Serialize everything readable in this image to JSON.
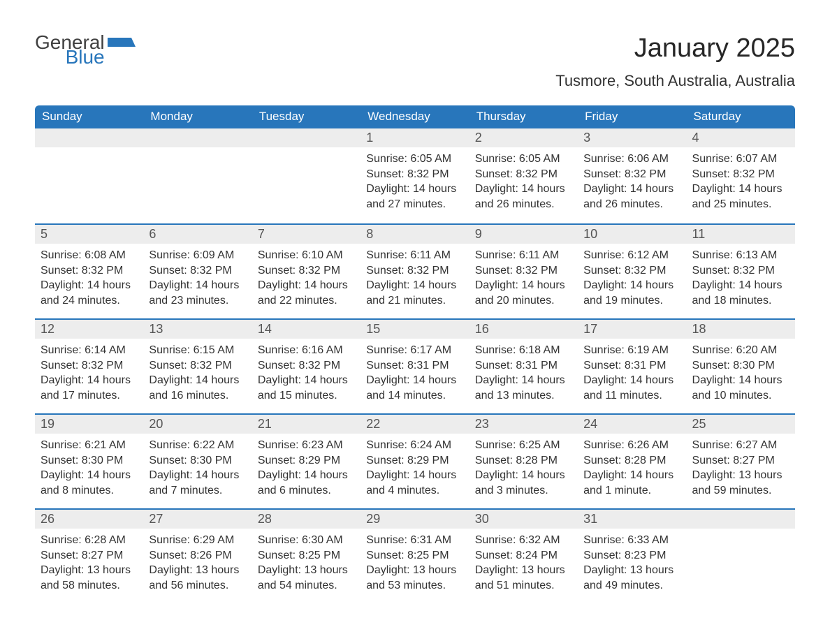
{
  "logo": {
    "general": "General",
    "blue": "Blue",
    "shape_color": "#2876bb"
  },
  "title": "January 2025",
  "location": "Tusmore, South Australia, Australia",
  "header_bg": "#2876bb",
  "header_fg": "#ffffff",
  "daynum_bg": "#ededed",
  "border_color": "#2876bb",
  "body_fontsize": 16,
  "weekdays": [
    "Sunday",
    "Monday",
    "Tuesday",
    "Wednesday",
    "Thursday",
    "Friday",
    "Saturday"
  ],
  "weeks": [
    [
      {
        "day": "",
        "sunrise": "",
        "sunset": "",
        "daylight": ""
      },
      {
        "day": "",
        "sunrise": "",
        "sunset": "",
        "daylight": ""
      },
      {
        "day": "",
        "sunrise": "",
        "sunset": "",
        "daylight": ""
      },
      {
        "day": "1",
        "sunrise": "Sunrise: 6:05 AM",
        "sunset": "Sunset: 8:32 PM",
        "daylight": "Daylight: 14 hours and 27 minutes."
      },
      {
        "day": "2",
        "sunrise": "Sunrise: 6:05 AM",
        "sunset": "Sunset: 8:32 PM",
        "daylight": "Daylight: 14 hours and 26 minutes."
      },
      {
        "day": "3",
        "sunrise": "Sunrise: 6:06 AM",
        "sunset": "Sunset: 8:32 PM",
        "daylight": "Daylight: 14 hours and 26 minutes."
      },
      {
        "day": "4",
        "sunrise": "Sunrise: 6:07 AM",
        "sunset": "Sunset: 8:32 PM",
        "daylight": "Daylight: 14 hours and 25 minutes."
      }
    ],
    [
      {
        "day": "5",
        "sunrise": "Sunrise: 6:08 AM",
        "sunset": "Sunset: 8:32 PM",
        "daylight": "Daylight: 14 hours and 24 minutes."
      },
      {
        "day": "6",
        "sunrise": "Sunrise: 6:09 AM",
        "sunset": "Sunset: 8:32 PM",
        "daylight": "Daylight: 14 hours and 23 minutes."
      },
      {
        "day": "7",
        "sunrise": "Sunrise: 6:10 AM",
        "sunset": "Sunset: 8:32 PM",
        "daylight": "Daylight: 14 hours and 22 minutes."
      },
      {
        "day": "8",
        "sunrise": "Sunrise: 6:11 AM",
        "sunset": "Sunset: 8:32 PM",
        "daylight": "Daylight: 14 hours and 21 minutes."
      },
      {
        "day": "9",
        "sunrise": "Sunrise: 6:11 AM",
        "sunset": "Sunset: 8:32 PM",
        "daylight": "Daylight: 14 hours and 20 minutes."
      },
      {
        "day": "10",
        "sunrise": "Sunrise: 6:12 AM",
        "sunset": "Sunset: 8:32 PM",
        "daylight": "Daylight: 14 hours and 19 minutes."
      },
      {
        "day": "11",
        "sunrise": "Sunrise: 6:13 AM",
        "sunset": "Sunset: 8:32 PM",
        "daylight": "Daylight: 14 hours and 18 minutes."
      }
    ],
    [
      {
        "day": "12",
        "sunrise": "Sunrise: 6:14 AM",
        "sunset": "Sunset: 8:32 PM",
        "daylight": "Daylight: 14 hours and 17 minutes."
      },
      {
        "day": "13",
        "sunrise": "Sunrise: 6:15 AM",
        "sunset": "Sunset: 8:32 PM",
        "daylight": "Daylight: 14 hours and 16 minutes."
      },
      {
        "day": "14",
        "sunrise": "Sunrise: 6:16 AM",
        "sunset": "Sunset: 8:32 PM",
        "daylight": "Daylight: 14 hours and 15 minutes."
      },
      {
        "day": "15",
        "sunrise": "Sunrise: 6:17 AM",
        "sunset": "Sunset: 8:31 PM",
        "daylight": "Daylight: 14 hours and 14 minutes."
      },
      {
        "day": "16",
        "sunrise": "Sunrise: 6:18 AM",
        "sunset": "Sunset: 8:31 PM",
        "daylight": "Daylight: 14 hours and 13 minutes."
      },
      {
        "day": "17",
        "sunrise": "Sunrise: 6:19 AM",
        "sunset": "Sunset: 8:31 PM",
        "daylight": "Daylight: 14 hours and 11 minutes."
      },
      {
        "day": "18",
        "sunrise": "Sunrise: 6:20 AM",
        "sunset": "Sunset: 8:30 PM",
        "daylight": "Daylight: 14 hours and 10 minutes."
      }
    ],
    [
      {
        "day": "19",
        "sunrise": "Sunrise: 6:21 AM",
        "sunset": "Sunset: 8:30 PM",
        "daylight": "Daylight: 14 hours and 8 minutes."
      },
      {
        "day": "20",
        "sunrise": "Sunrise: 6:22 AM",
        "sunset": "Sunset: 8:30 PM",
        "daylight": "Daylight: 14 hours and 7 minutes."
      },
      {
        "day": "21",
        "sunrise": "Sunrise: 6:23 AM",
        "sunset": "Sunset: 8:29 PM",
        "daylight": "Daylight: 14 hours and 6 minutes."
      },
      {
        "day": "22",
        "sunrise": "Sunrise: 6:24 AM",
        "sunset": "Sunset: 8:29 PM",
        "daylight": "Daylight: 14 hours and 4 minutes."
      },
      {
        "day": "23",
        "sunrise": "Sunrise: 6:25 AM",
        "sunset": "Sunset: 8:28 PM",
        "daylight": "Daylight: 14 hours and 3 minutes."
      },
      {
        "day": "24",
        "sunrise": "Sunrise: 6:26 AM",
        "sunset": "Sunset: 8:28 PM",
        "daylight": "Daylight: 14 hours and 1 minute."
      },
      {
        "day": "25",
        "sunrise": "Sunrise: 6:27 AM",
        "sunset": "Sunset: 8:27 PM",
        "daylight": "Daylight: 13 hours and 59 minutes."
      }
    ],
    [
      {
        "day": "26",
        "sunrise": "Sunrise: 6:28 AM",
        "sunset": "Sunset: 8:27 PM",
        "daylight": "Daylight: 13 hours and 58 minutes."
      },
      {
        "day": "27",
        "sunrise": "Sunrise: 6:29 AM",
        "sunset": "Sunset: 8:26 PM",
        "daylight": "Daylight: 13 hours and 56 minutes."
      },
      {
        "day": "28",
        "sunrise": "Sunrise: 6:30 AM",
        "sunset": "Sunset: 8:25 PM",
        "daylight": "Daylight: 13 hours and 54 minutes."
      },
      {
        "day": "29",
        "sunrise": "Sunrise: 6:31 AM",
        "sunset": "Sunset: 8:25 PM",
        "daylight": "Daylight: 13 hours and 53 minutes."
      },
      {
        "day": "30",
        "sunrise": "Sunrise: 6:32 AM",
        "sunset": "Sunset: 8:24 PM",
        "daylight": "Daylight: 13 hours and 51 minutes."
      },
      {
        "day": "31",
        "sunrise": "Sunrise: 6:33 AM",
        "sunset": "Sunset: 8:23 PM",
        "daylight": "Daylight: 13 hours and 49 minutes."
      },
      {
        "day": "",
        "sunrise": "",
        "sunset": "",
        "daylight": ""
      }
    ]
  ]
}
